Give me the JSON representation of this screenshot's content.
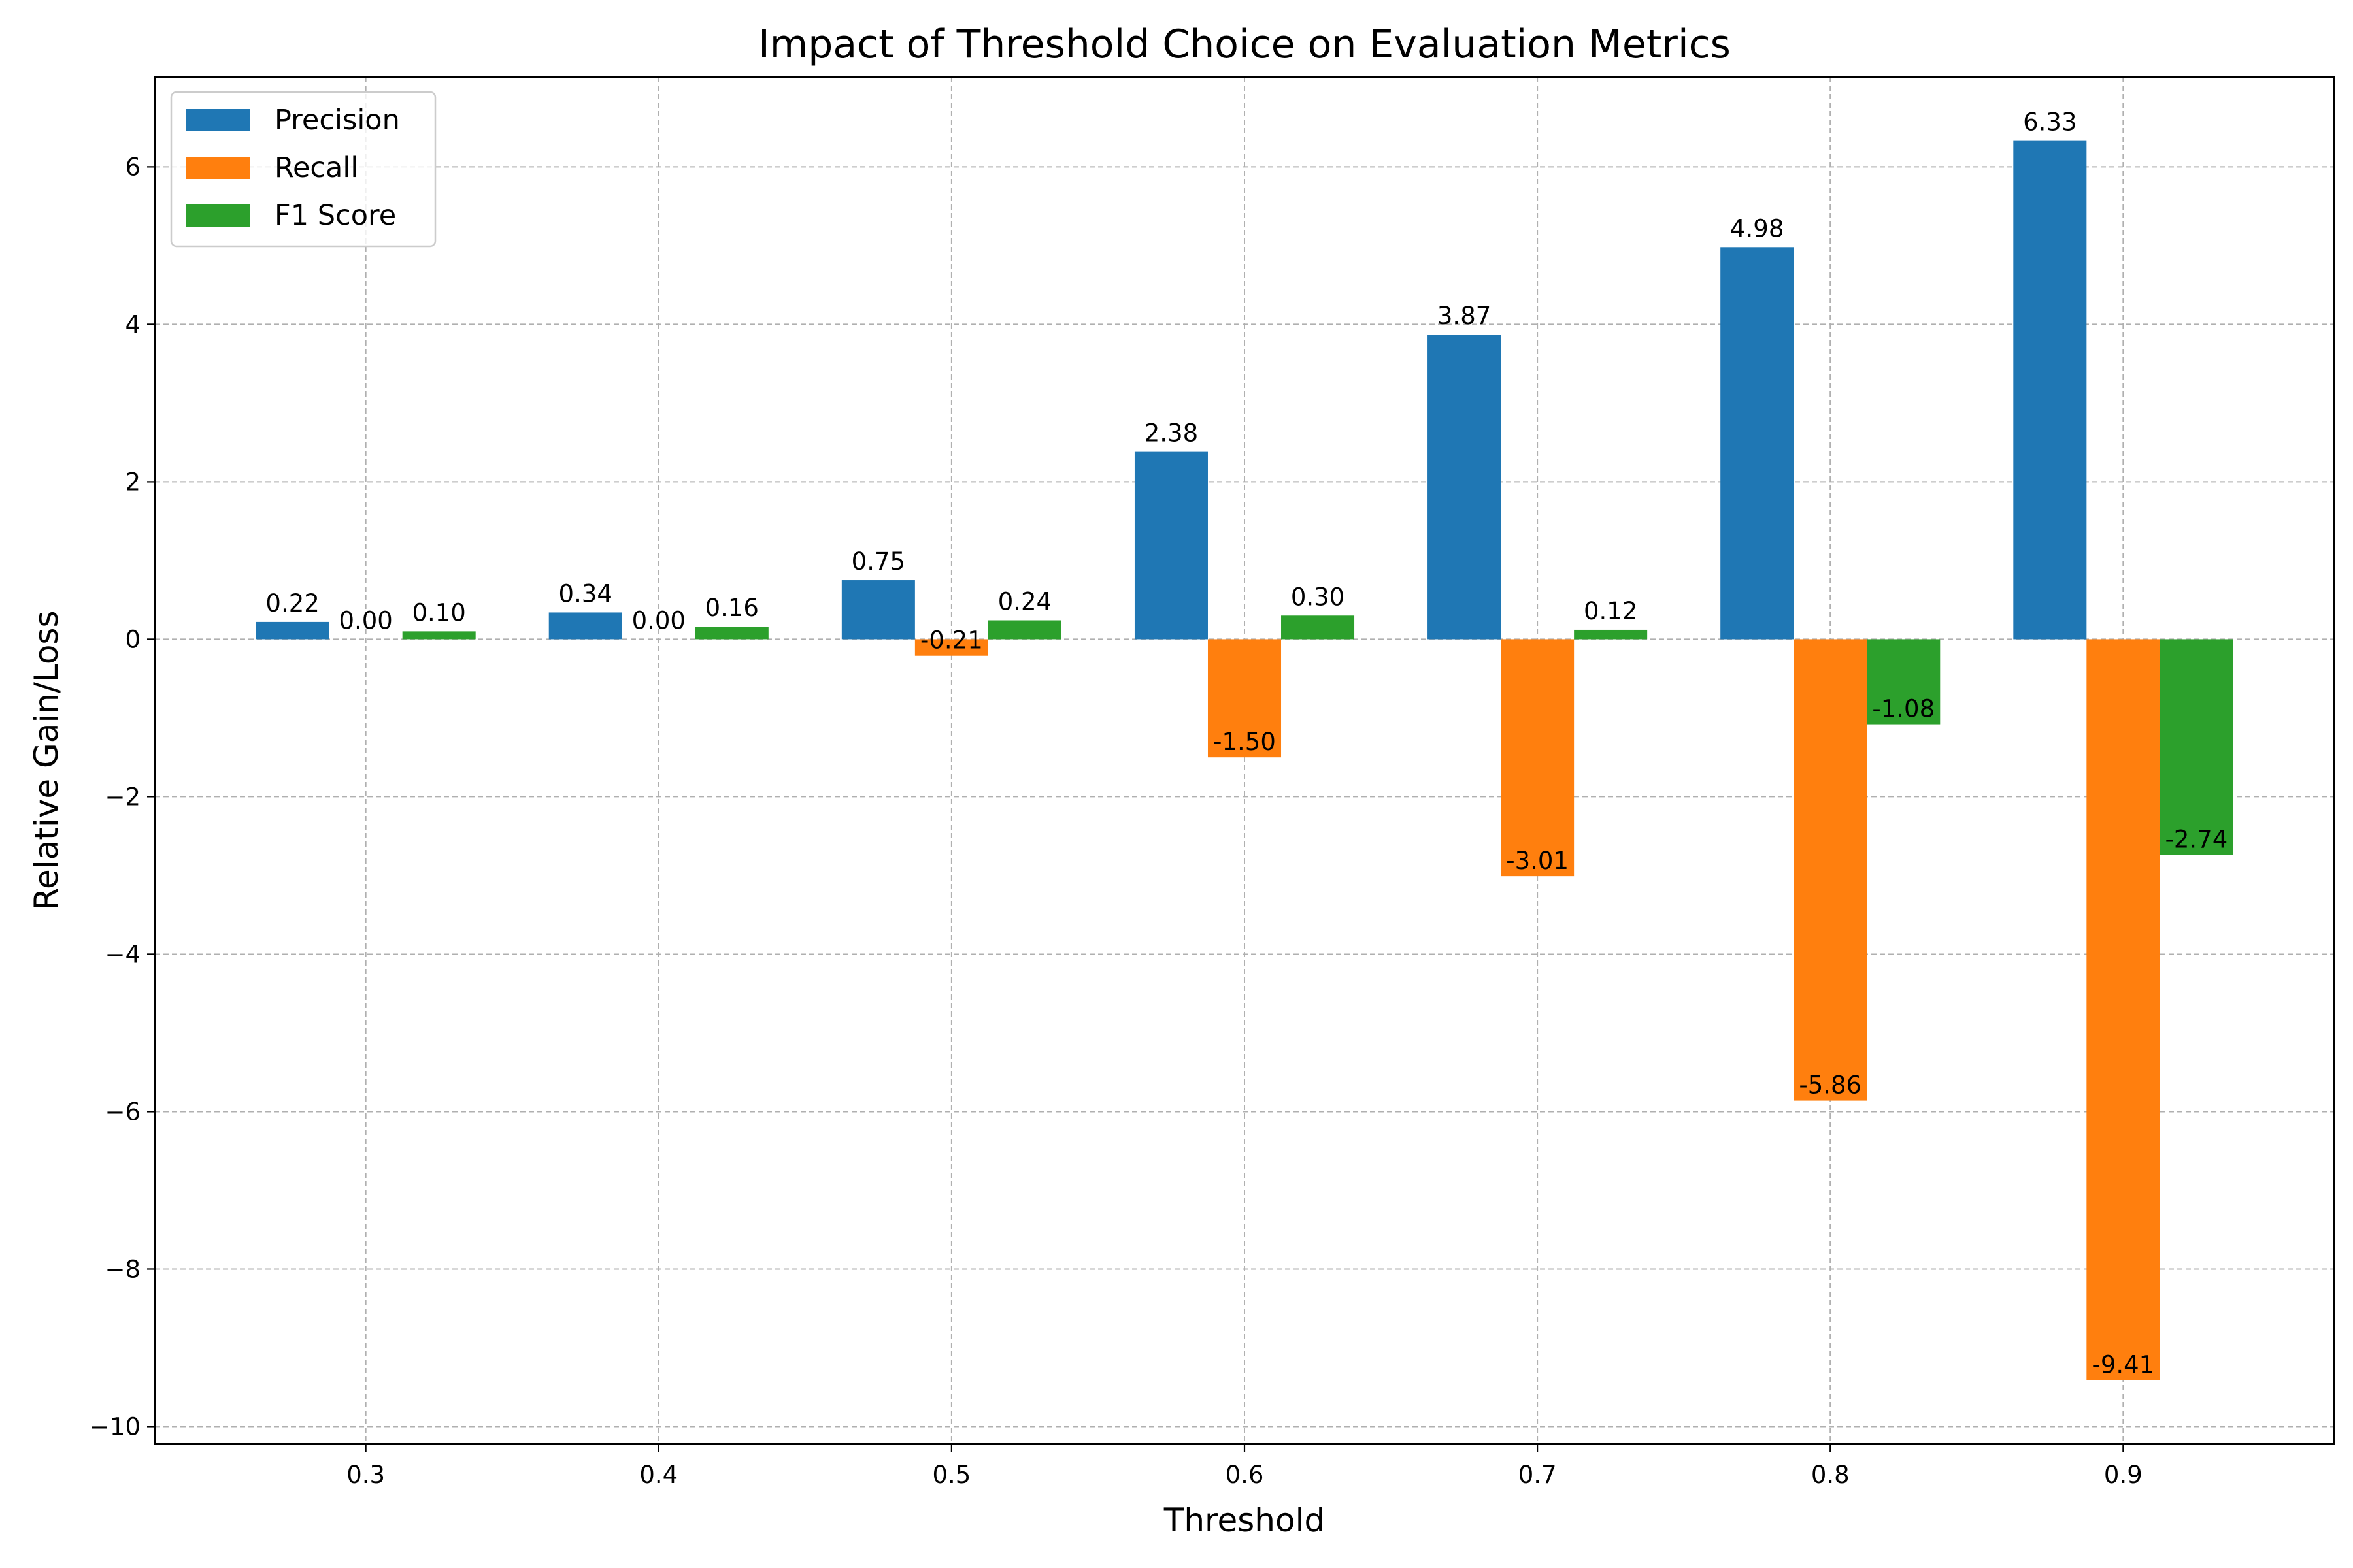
{
  "chart_data": {
    "type": "bar",
    "title": "Impact of Threshold Choice on Evaluation Metrics",
    "xlabel": "Threshold",
    "ylabel": "Relative Gain/Loss",
    "categories": [
      "0.3",
      "0.4",
      "0.5",
      "0.6",
      "0.7",
      "0.8",
      "0.9"
    ],
    "series": [
      {
        "name": "Precision",
        "color": "#1f77b4",
        "values": [
          0.22,
          0.34,
          0.75,
          2.38,
          3.87,
          4.98,
          6.33
        ],
        "labels": [
          "0.22",
          "0.34",
          "0.75",
          "2.38",
          "3.87",
          "4.98",
          "6.33"
        ]
      },
      {
        "name": "Recall",
        "color": "#ff7f0e",
        "values": [
          0.0,
          0.0,
          -0.21,
          -1.5,
          -3.01,
          -5.86,
          -9.41
        ],
        "labels": [
          "0.00",
          "0.00",
          "-0.21",
          "-1.50",
          "-3.01",
          "-5.86",
          "-9.41"
        ]
      },
      {
        "name": "F1 Score",
        "color": "#2ca02c",
        "values": [
          0.1,
          0.16,
          0.24,
          0.3,
          0.12,
          -1.08,
          -2.74
        ],
        "labels": [
          "0.10",
          "0.16",
          "0.24",
          "0.30",
          "0.12",
          "-1.08",
          "-2.74"
        ]
      }
    ],
    "ylim": [
      -10.22,
      7.14
    ],
    "yticks": [
      -10,
      -8,
      -6,
      -4,
      -2,
      0,
      2,
      4,
      6
    ],
    "ytick_labels": [
      "−10",
      "−8",
      "−6",
      "−4",
      "−2",
      "0",
      "2",
      "4",
      "6"
    ],
    "grid": true,
    "legend_position": "upper left"
  }
}
